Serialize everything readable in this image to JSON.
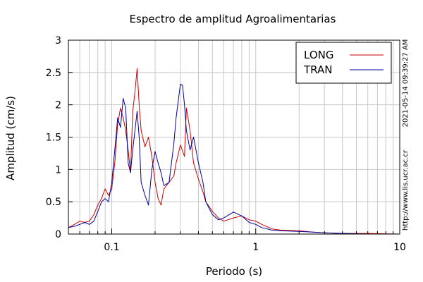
{
  "chart_data": {
    "type": "line",
    "title": "Espectro de amplitud Agroalimentarias",
    "xlabel": "Periodo (s)",
    "ylabel": "Amplitud (cm/s)",
    "x_scale": "log",
    "xlim": [
      0.05,
      10
    ],
    "ylim": [
      0,
      3
    ],
    "grid": true,
    "legend_position": "top-right",
    "x_ticks": [
      {
        "value": 0.1,
        "label": "0.1"
      },
      {
        "value": 1,
        "label": "1"
      },
      {
        "value": 10,
        "label": "10"
      }
    ],
    "y_ticks": [
      {
        "value": 0,
        "label": "0"
      },
      {
        "value": 0.5,
        "label": "0.5"
      },
      {
        "value": 1,
        "label": "1"
      },
      {
        "value": 1.5,
        "label": "1.5"
      },
      {
        "value": 2,
        "label": "2"
      },
      {
        "value": 2.5,
        "label": "2.5"
      },
      {
        "value": 3,
        "label": "3"
      }
    ],
    "series": [
      {
        "name": "LONG",
        "color": "#cc0000",
        "x": [
          0.05,
          0.055,
          0.06,
          0.065,
          0.07,
          0.075,
          0.08,
          0.085,
          0.09,
          0.095,
          0.1,
          0.105,
          0.11,
          0.115,
          0.12,
          0.125,
          0.13,
          0.135,
          0.14,
          0.145,
          0.15,
          0.155,
          0.16,
          0.17,
          0.18,
          0.19,
          0.2,
          0.21,
          0.22,
          0.23,
          0.25,
          0.27,
          0.28,
          0.3,
          0.32,
          0.33,
          0.35,
          0.37,
          0.4,
          0.43,
          0.45,
          0.5,
          0.55,
          0.6,
          0.7,
          0.8,
          0.9,
          1.0,
          1.1,
          1.3,
          1.5,
          2.0,
          2.5,
          3.0,
          4.0,
          6.0,
          10.0
        ],
        "y": [
          0.1,
          0.15,
          0.2,
          0.18,
          0.2,
          0.3,
          0.45,
          0.55,
          0.7,
          0.6,
          0.7,
          1.1,
          1.7,
          1.95,
          1.8,
          1.6,
          1.3,
          0.95,
          1.9,
          2.2,
          2.56,
          2.0,
          1.6,
          1.35,
          1.5,
          1.2,
          0.8,
          0.55,
          0.45,
          0.7,
          0.8,
          0.9,
          1.1,
          1.38,
          1.2,
          1.95,
          1.6,
          1.1,
          0.85,
          0.65,
          0.5,
          0.35,
          0.25,
          0.2,
          0.25,
          0.28,
          0.22,
          0.2,
          0.15,
          0.08,
          0.06,
          0.05,
          0.03,
          0.02,
          0.01,
          0.01,
          0.0
        ]
      },
      {
        "name": "TRAN",
        "color": "#000099",
        "x": [
          0.05,
          0.055,
          0.06,
          0.065,
          0.07,
          0.075,
          0.08,
          0.085,
          0.09,
          0.095,
          0.1,
          0.105,
          0.11,
          0.115,
          0.12,
          0.125,
          0.13,
          0.135,
          0.14,
          0.145,
          0.15,
          0.155,
          0.16,
          0.17,
          0.18,
          0.19,
          0.2,
          0.21,
          0.22,
          0.23,
          0.25,
          0.27,
          0.28,
          0.3,
          0.31,
          0.32,
          0.33,
          0.35,
          0.37,
          0.4,
          0.43,
          0.45,
          0.5,
          0.55,
          0.6,
          0.7,
          0.8,
          0.9,
          1.0,
          1.1,
          1.3,
          1.5,
          2.0,
          2.5,
          3.0,
          4.0,
          6.0,
          10.0
        ],
        "y": [
          0.1,
          0.12,
          0.15,
          0.18,
          0.15,
          0.2,
          0.35,
          0.5,
          0.55,
          0.5,
          0.8,
          1.3,
          1.8,
          1.65,
          2.1,
          1.95,
          1.1,
          0.95,
          1.3,
          1.6,
          1.9,
          1.5,
          0.8,
          0.6,
          0.45,
          1.0,
          1.28,
          1.1,
          0.95,
          0.75,
          0.8,
          1.4,
          1.8,
          2.32,
          2.3,
          2.0,
          1.6,
          1.3,
          1.5,
          1.1,
          0.8,
          0.5,
          0.3,
          0.22,
          0.25,
          0.34,
          0.28,
          0.18,
          0.15,
          0.1,
          0.06,
          0.05,
          0.04,
          0.03,
          0.02,
          0.01,
          0.0,
          0.0
        ]
      }
    ],
    "side_annotations": [
      "2021-05-14 09:39:27 AM",
      "http://www.lis.ucr.ac.cr"
    ]
  }
}
